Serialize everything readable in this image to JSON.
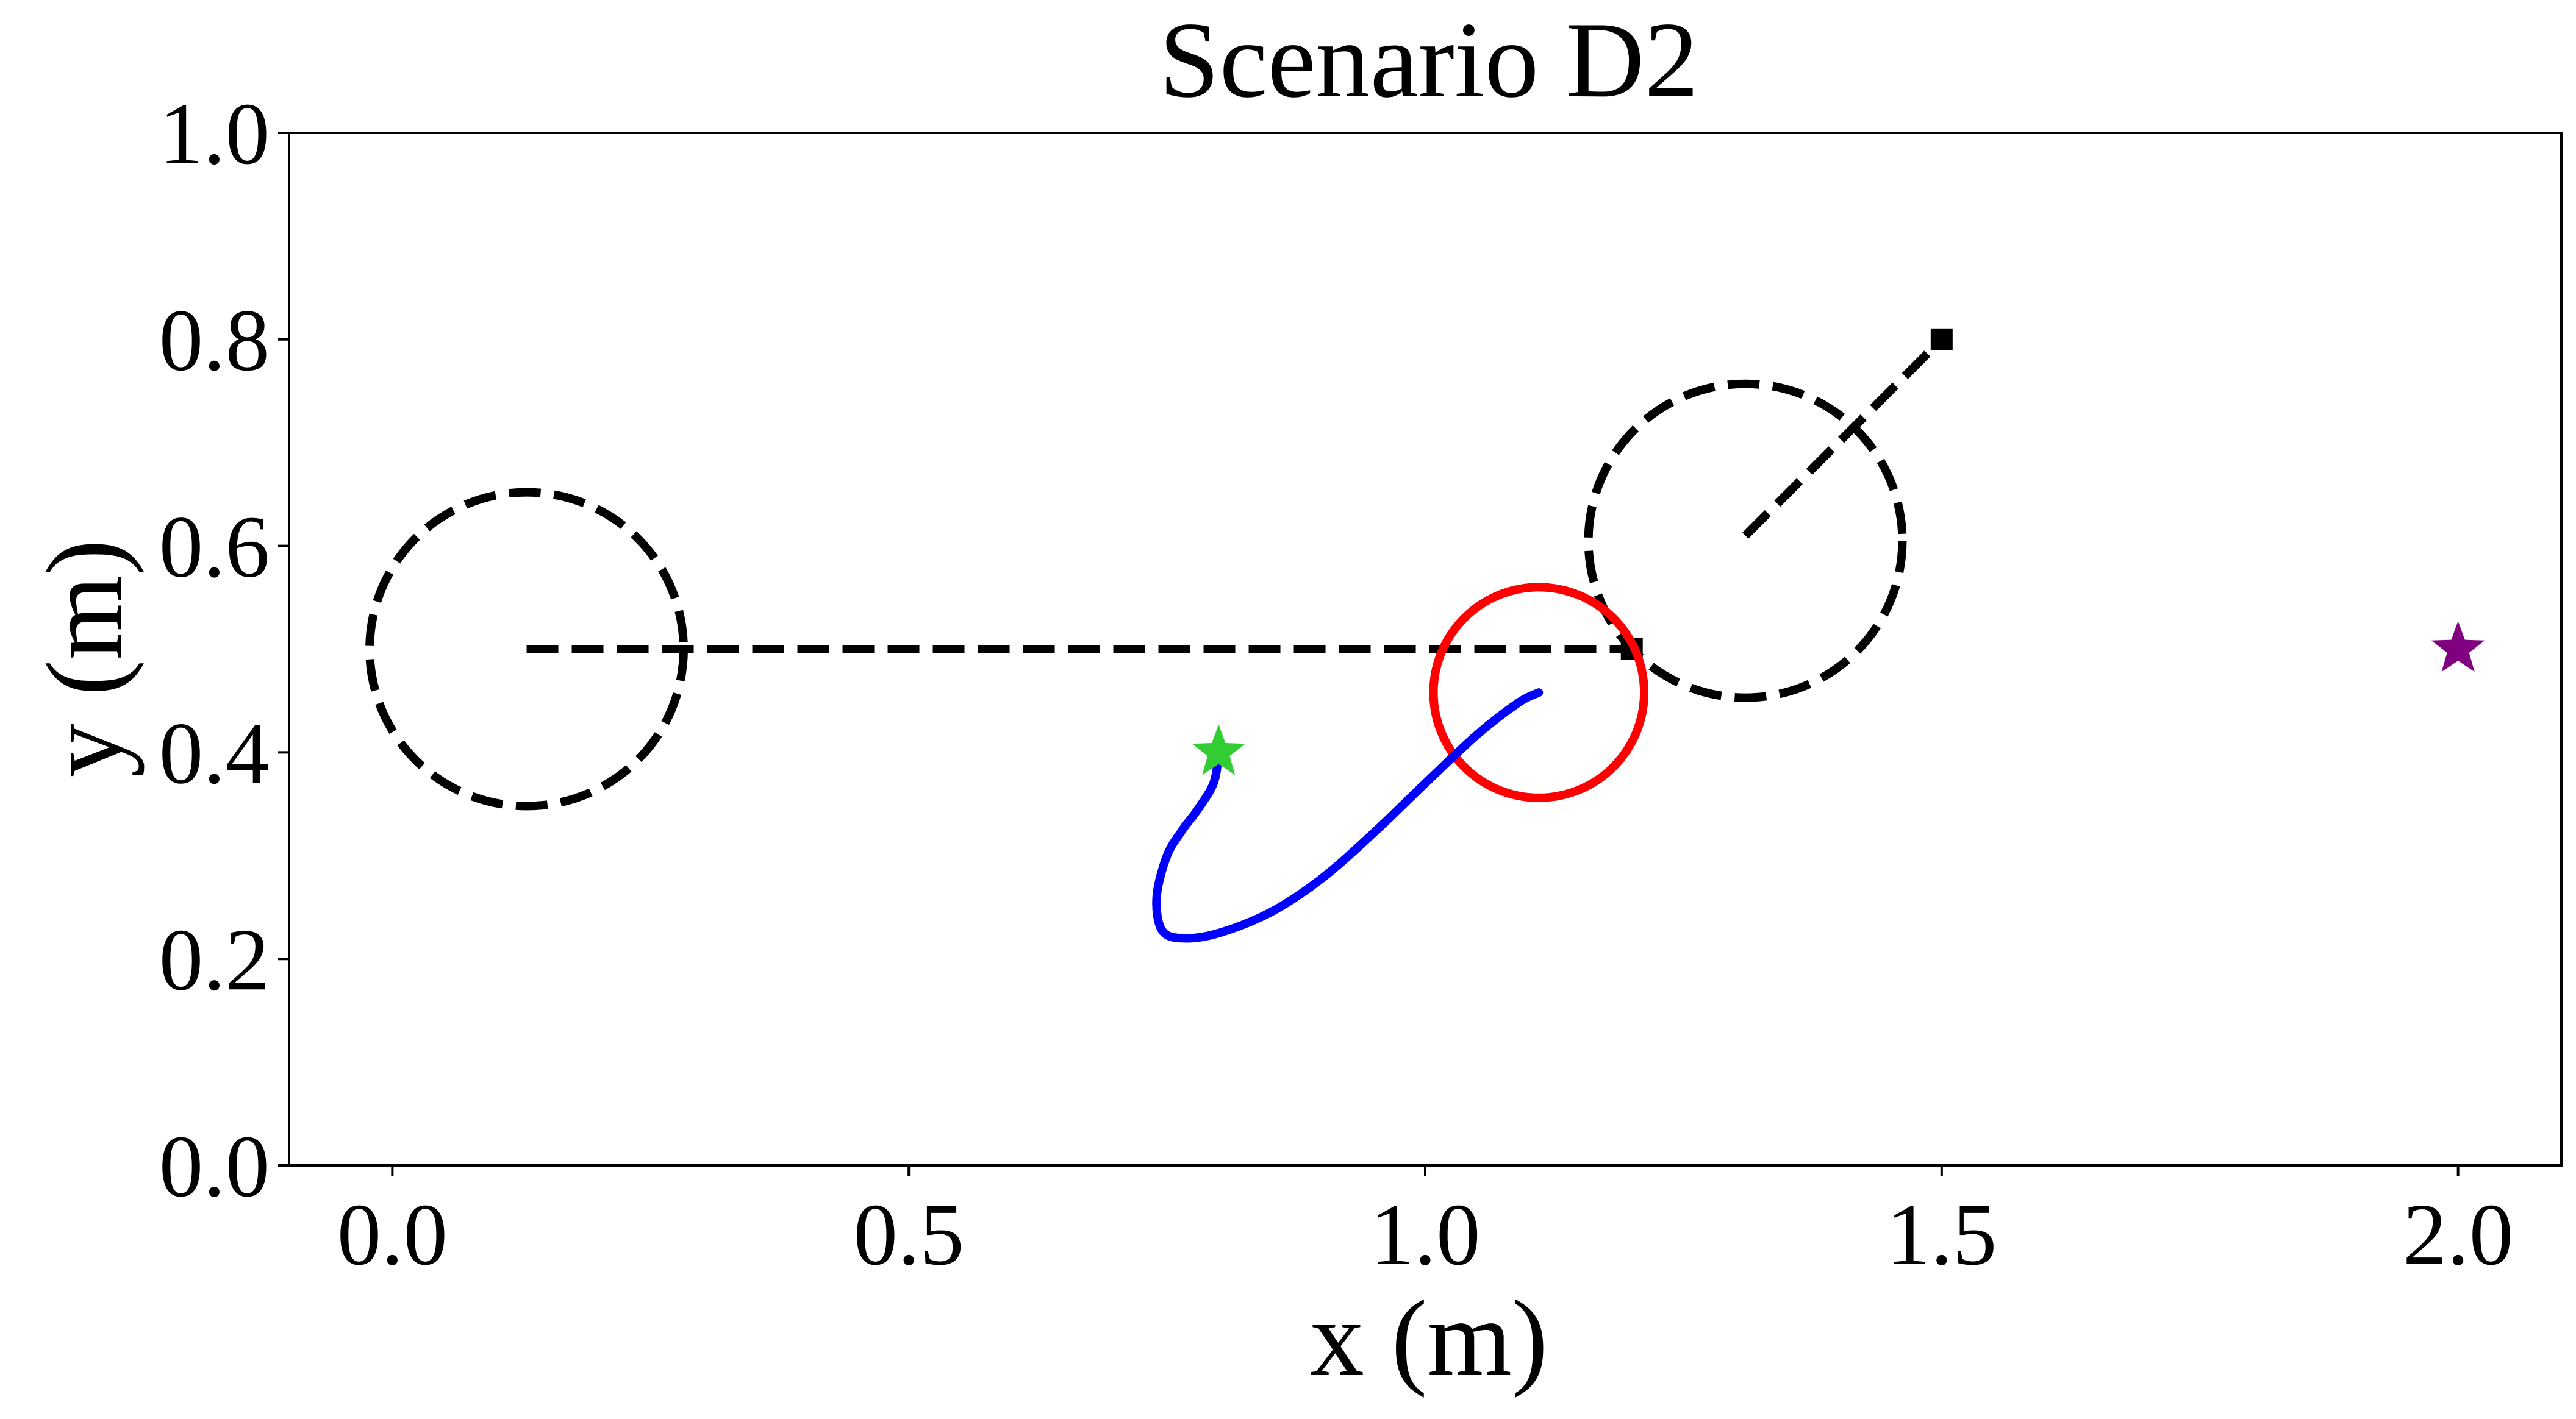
{
  "chart_data": {
    "type": "scatter",
    "title": "Scenario D2",
    "xlabel": "x (m)",
    "ylabel": "y (m)",
    "xlim": [
      -0.1,
      2.1
    ],
    "ylim": [
      0.0,
      1.0
    ],
    "xticks": [
      0.0,
      0.5,
      1.0,
      1.5,
      2.0
    ],
    "yticks": [
      0.0,
      0.2,
      0.4,
      0.6,
      0.8,
      1.0
    ],
    "xtick_labels": [
      "0.0",
      "0.5",
      "1.0",
      "1.5",
      "2.0"
    ],
    "ytick_labels": [
      "0.0",
      "0.2",
      "0.4",
      "0.6",
      "0.8",
      "1.0"
    ],
    "grid": false,
    "obstacle_circles": [
      {
        "center": [
          0.13,
          0.5
        ],
        "radius": 0.152,
        "color": "#000000",
        "style": "dashed"
      },
      {
        "center": [
          1.31,
          0.605
        ],
        "radius": 0.152,
        "color": "#000000",
        "style": "dashed"
      }
    ],
    "obstacle_paths": [
      {
        "x": [
          0.13,
          1.2
        ],
        "y": [
          0.5,
          0.5
        ],
        "color": "#000000",
        "style": "dashed",
        "end_marker": "square"
      },
      {
        "x": [
          1.31,
          1.5
        ],
        "y": [
          0.61,
          0.8
        ],
        "color": "#000000",
        "style": "dashed",
        "end_marker": "square"
      }
    ],
    "robot_circle": {
      "center": [
        1.11,
        0.458
      ],
      "radius": 0.102,
      "color": "#ff0000"
    },
    "trajectory": {
      "color": "#0000ff",
      "x": [
        0.8,
        0.795,
        0.78,
        0.765,
        0.75,
        0.74,
        0.745,
        0.765,
        0.8,
        0.85,
        0.9,
        0.95,
        1.0,
        1.05,
        1.09,
        1.11
      ],
      "y": [
        0.397,
        0.37,
        0.345,
        0.325,
        0.3,
        0.26,
        0.228,
        0.22,
        0.225,
        0.245,
        0.278,
        0.322,
        0.37,
        0.417,
        0.448,
        0.458
      ]
    },
    "start_marker": {
      "x": 0.8,
      "y": 0.4,
      "color": "#32cd32",
      "shape": "star"
    },
    "goal_marker": {
      "x": 2.0,
      "y": 0.5,
      "color": "#800080",
      "shape": "star"
    }
  }
}
